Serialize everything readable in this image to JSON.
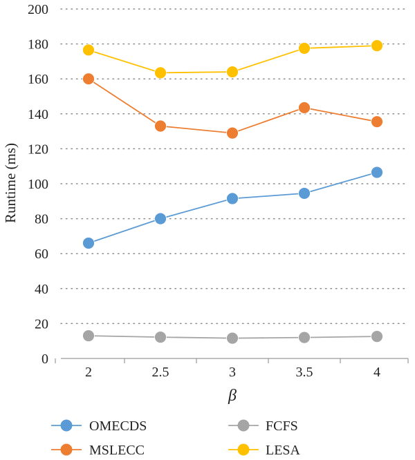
{
  "chart_data": {
    "type": "line",
    "title": "",
    "xlabel": "β",
    "ylabel": "Runtime (ms)",
    "x": [
      "2",
      "2.5",
      "3",
      "3.5",
      "4"
    ],
    "ylim": [
      0,
      200
    ],
    "yticks": [
      "0",
      "20",
      "40",
      "60",
      "80",
      "100",
      "120",
      "140",
      "160",
      "180",
      "200"
    ],
    "grid": "horizontal dotted",
    "legend_position": "bottom",
    "series": [
      {
        "name": "OMECDS",
        "color": "#5B9BD5",
        "values": [
          66,
          80,
          91.5,
          94.5,
          106.5
        ]
      },
      {
        "name": "MSLECC",
        "color": "#ED7D31",
        "values": [
          160,
          133,
          129,
          143.5,
          135.5
        ]
      },
      {
        "name": "FCFS",
        "color": "#A5A5A5",
        "values": [
          13,
          12.2,
          11.6,
          12,
          12.6
        ]
      },
      {
        "name": "LESA",
        "color": "#FFC000",
        "values": [
          176.5,
          163.5,
          164,
          177.5,
          179
        ]
      }
    ]
  }
}
